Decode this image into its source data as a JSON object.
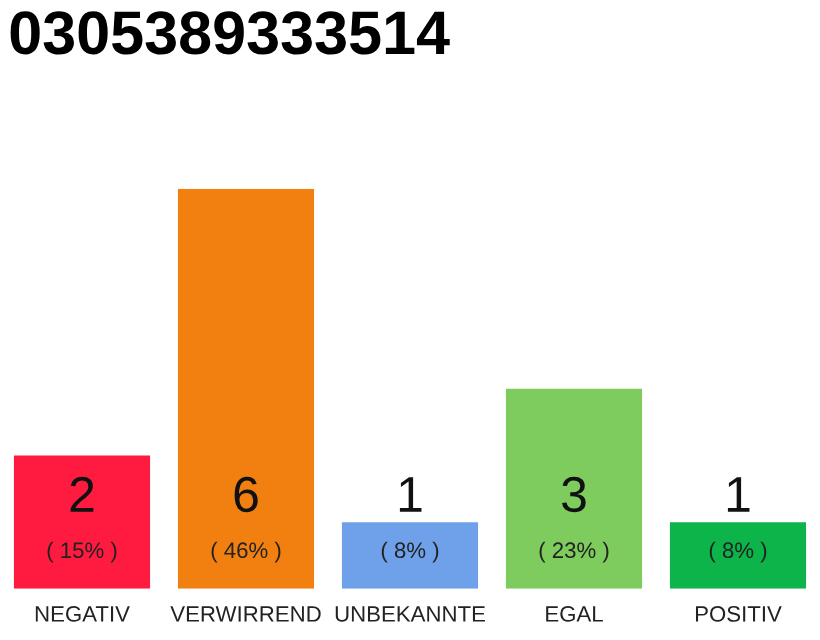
{
  "chart_data": {
    "type": "bar",
    "title": "0305389333514",
    "categories": [
      "NEGATIV",
      "VERWIRREND",
      "UNBEKANNTE",
      "EGAL",
      "POSITIV"
    ],
    "values": [
      2,
      6,
      1,
      3,
      1
    ],
    "colors": [
      "#ff1a40",
      "#f28010",
      "#6fa0ea",
      "#7ecb5e",
      "#0cb44a"
    ],
    "data_labels": true,
    "annotations": [
      "( 15% )",
      "( 46% )",
      "( 8% )",
      "( 23% )",
      "( 8% )"
    ],
    "grid": false,
    "legend": false
  }
}
